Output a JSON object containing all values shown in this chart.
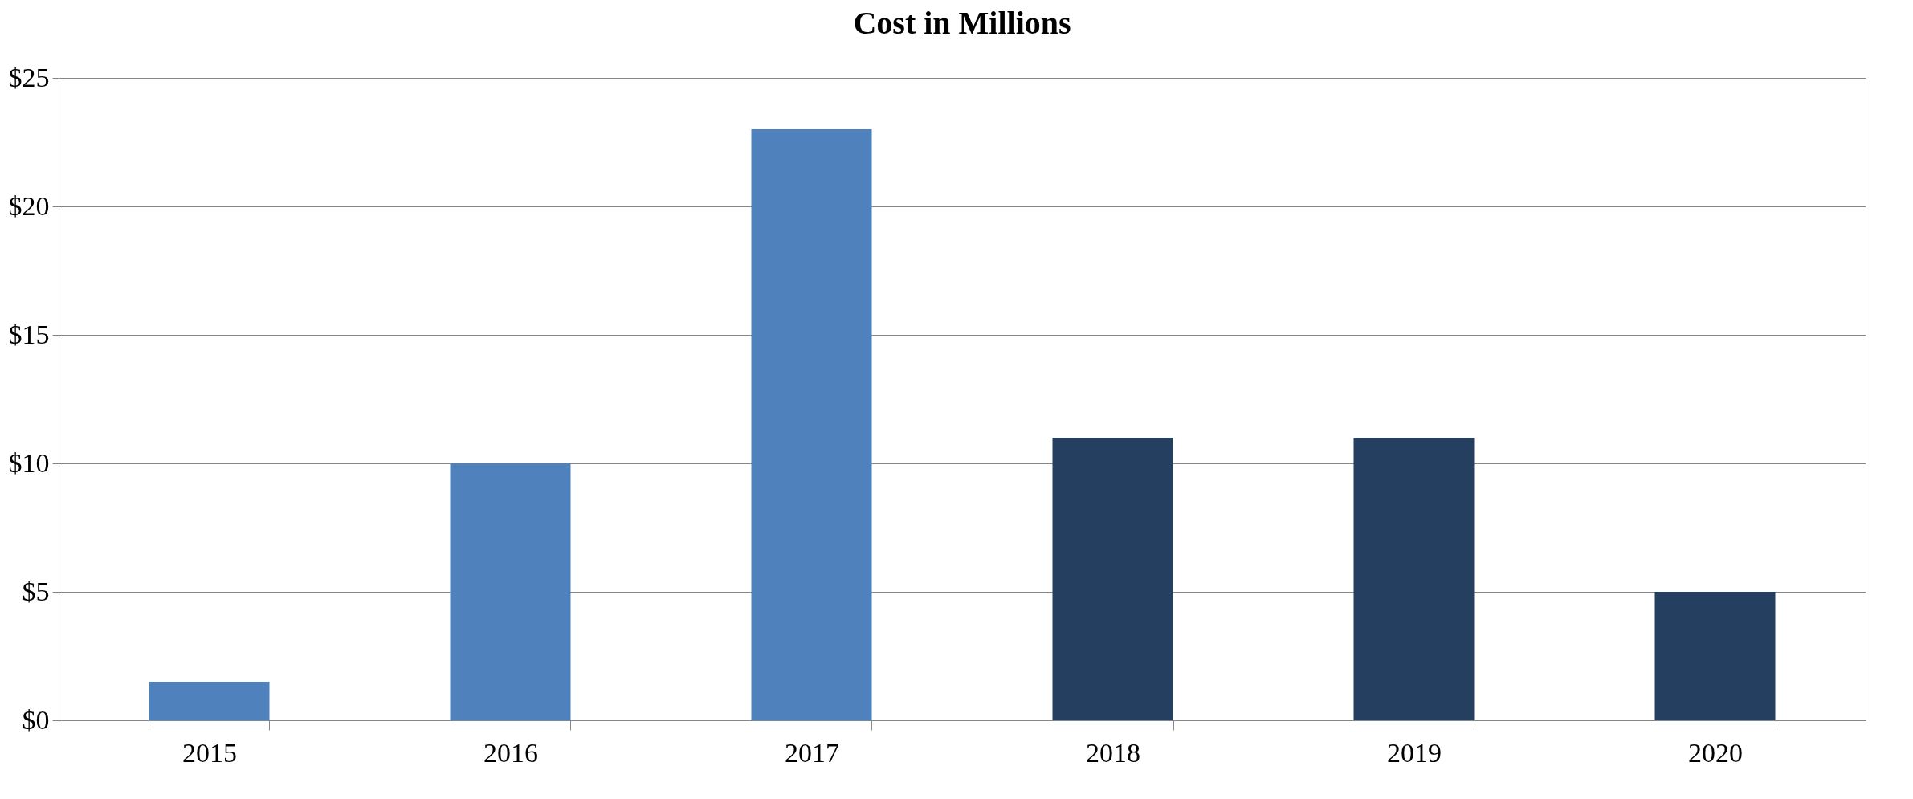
{
  "chart_data": {
    "type": "bar",
    "title": "Cost in Millions",
    "categories": [
      "2015",
      "2016",
      "2017",
      "2018",
      "2019",
      "2020"
    ],
    "values": [
      1.5,
      10,
      23,
      11,
      11,
      5
    ],
    "colors": [
      "#4f81bd",
      "#4f81bd",
      "#4f81bd",
      "#243f60",
      "#243f60",
      "#243f60"
    ],
    "ylim": [
      0,
      25
    ],
    "yticks": [
      {
        "value": 0,
        "label": "$0"
      },
      {
        "value": 5,
        "label": "$5"
      },
      {
        "value": 10,
        "label": "$10"
      },
      {
        "value": 15,
        "label": "$15"
      },
      {
        "value": 20,
        "label": "$20"
      },
      {
        "value": 25,
        "label": "$25"
      }
    ],
    "grid": "y",
    "legend": false
  }
}
